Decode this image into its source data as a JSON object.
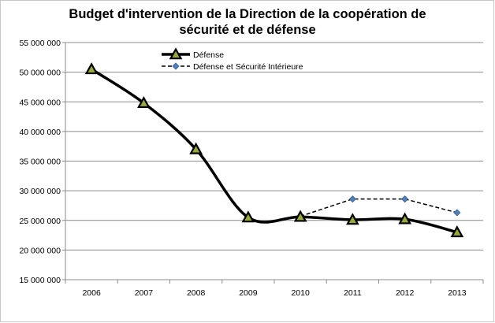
{
  "chart_data": {
    "type": "line",
    "title_line1": "Budget d'intervention de la Direction de la coopération de",
    "title_line2": "sécurité et de défense",
    "categories": [
      "2006",
      "2007",
      "2008",
      "2009",
      "2010",
      "2011",
      "2012",
      "2013"
    ],
    "ylim": [
      15000000,
      55000000
    ],
    "yticks": [
      15000000,
      20000000,
      25000000,
      30000000,
      35000000,
      40000000,
      45000000,
      50000000,
      55000000
    ],
    "ytick_labels": [
      "15 000 000",
      "20 000 000",
      "25 000 000",
      "30 000 000",
      "35 000 000",
      "40 000 000",
      "45 000 000",
      "50 000 000",
      "55 000 000"
    ],
    "grid": "horizontal",
    "legend_position": "top-center",
    "series": [
      {
        "name": "Défense",
        "style": "solid",
        "marker": "triangle",
        "color": "#000000",
        "marker_fill": "#9aa83a",
        "x": [
          "2006",
          "2007",
          "2008",
          "2009",
          "2010",
          "2011",
          "2012",
          "2013"
        ],
        "values": [
          50500000,
          44800000,
          37000000,
          25500000,
          25600000,
          25100000,
          25200000,
          23000000
        ]
      },
      {
        "name": "Défense et Sécurité Intérieure",
        "style": "dashed",
        "marker": "diamond",
        "color": "#000000",
        "marker_fill": "#4f81bd",
        "x": [
          "2010",
          "2011",
          "2012",
          "2013"
        ],
        "values": [
          25700000,
          28600000,
          28600000,
          26300000
        ]
      }
    ]
  }
}
